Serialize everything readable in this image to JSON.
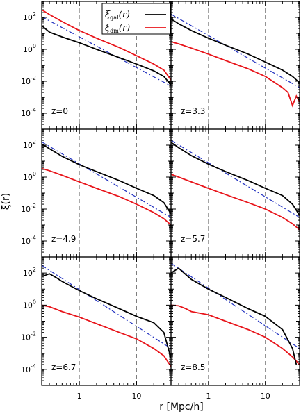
{
  "chart_data": {
    "type": "line",
    "xlabel": "r [Mpc/h]",
    "ylabel": "ξ(r)",
    "xscale": "log",
    "yscale": "log",
    "xlim": [
      0.22,
      40
    ],
    "ylim": [
      1e-05,
      1000
    ],
    "x_ticks": [
      "1",
      "10"
    ],
    "y_ticks": [
      "10^2",
      "10^0",
      "10^-2",
      "10^-4"
    ],
    "grid": false,
    "vertical_dashed_lines_at": [
      1,
      10
    ],
    "legend": {
      "placement": "top-left-panel",
      "entries": [
        {
          "label_base": "ξ",
          "label_sub": "gal",
          "label_tail": "(r)",
          "color": "#000000"
        },
        {
          "label_base": "ξ",
          "label_sub": "dm",
          "label_tail": "(r)",
          "color": "#e8141a"
        }
      ]
    },
    "reference_line": {
      "style": "dash-dot",
      "color": "#1f2fbf"
    },
    "panels": [
      {
        "label": "z=0",
        "series": {
          "gal": {
            "x": [
              0.22,
              0.3,
              0.5,
              1,
              2,
              5,
              10,
              20,
              30,
              40
            ],
            "y": [
              30,
              12,
              6,
              2.6,
              1.0,
              0.3,
              0.12,
              0.045,
              0.02,
              0.006
            ]
          },
          "dm": {
            "x": [
              0.22,
              0.3,
              0.5,
              1,
              2,
              5,
              10,
              20,
              30,
              40
            ],
            "y": [
              300,
              150,
              55,
              15,
              5,
              1.3,
              0.4,
              0.12,
              0.05,
              0.012
            ]
          },
          "ref": {
            "x": [
              0.22,
              40
            ],
            "y": [
              110,
              0.005
            ]
          }
        }
      },
      {
        "label": "z=3.3",
        "series": {
          "gal": {
            "x": [
              0.22,
              0.3,
              0.5,
              1,
              2,
              5,
              10,
              20,
              30,
              40
            ],
            "y": [
              80,
              40,
              15,
              5,
              1.8,
              0.5,
              0.16,
              0.05,
              0.02,
              0.008
            ]
          },
          "dm": {
            "x": [
              0.22,
              0.3,
              0.5,
              1,
              2,
              5,
              10,
              20,
              25,
              30,
              35,
              40
            ],
            "y": [
              3,
              2.2,
              1.2,
              0.5,
              0.2,
              0.06,
              0.02,
              0.004,
              0.002,
              0.0003,
              0.0012,
              0.0005
            ]
          },
          "ref": {
            "x": [
              0.22,
              40
            ],
            "y": [
              160,
              0.004
            ]
          }
        }
      },
      {
        "label": "z=4.9",
        "series": {
          "gal": {
            "x": [
              0.22,
              0.3,
              0.5,
              1,
              2,
              5,
              10,
              20,
              30,
              40
            ],
            "y": [
              120,
              60,
              20,
              6,
              2.2,
              0.6,
              0.2,
              0.07,
              0.025,
              0.005
            ]
          },
          "dm": {
            "x": [
              0.22,
              0.3,
              0.5,
              1,
              2,
              5,
              10,
              20,
              30,
              40
            ],
            "y": [
              3.5,
              2.5,
              1.3,
              0.5,
              0.2,
              0.06,
              0.02,
              0.006,
              0.0025,
              0.001
            ]
          },
          "ref": {
            "x": [
              0.22,
              40
            ],
            "y": [
              160,
              0.003
            ]
          }
        }
      },
      {
        "label": "z=5.7",
        "series": {
          "gal": {
            "x": [
              0.22,
              0.3,
              0.5,
              1,
              2,
              5,
              10,
              20,
              30,
              40
            ],
            "y": [
              150,
              70,
              22,
              6.5,
              2.2,
              0.6,
              0.2,
              0.07,
              0.02,
              0.004
            ]
          },
          "dm": {
            "x": [
              0.22,
              0.3,
              0.5,
              1,
              2,
              5,
              10,
              20,
              30,
              40
            ],
            "y": [
              1.5,
              1.0,
              0.5,
              0.2,
              0.08,
              0.025,
              0.01,
              0.003,
              0.0012,
              0.0005
            ]
          },
          "ref": {
            "x": [
              0.22,
              40
            ],
            "y": [
              200,
              0.003
            ]
          }
        }
      },
      {
        "label": "z=6.7",
        "series": {
          "gal": {
            "x": [
              0.22,
              0.3,
              0.4,
              0.5,
              1,
              2,
              5,
              10,
              20,
              30,
              40
            ],
            "y": [
              60,
              90,
              50,
              30,
              8,
              2.5,
              0.6,
              0.2,
              0.08,
              0.02,
              0.0005
            ]
          },
          "dm": {
            "x": [
              0.22,
              0.3,
              0.5,
              1,
              2,
              5,
              10,
              20,
              30,
              40
            ],
            "y": [
              1.0,
              0.8,
              0.4,
              0.18,
              0.07,
              0.02,
              0.008,
              0.002,
              0.0007,
              0.00015
            ]
          },
          "ref": {
            "x": [
              0.22,
              40
            ],
            "y": [
              300,
              0.002
            ]
          }
        }
      },
      {
        "label": "z=8.5",
        "series": {
          "gal": {
            "x": [
              0.22,
              0.3,
              0.4,
              0.5,
              1,
              2,
              5,
              10,
              20,
              30,
              35
            ],
            "y": [
              100,
              200,
              80,
              40,
              10,
              3,
              0.6,
              0.2,
              0.03,
              0.002,
              0.0002
            ]
          },
          "dm": {
            "x": [
              0.22,
              0.3,
              0.4,
              0.5,
              1,
              2,
              5,
              10,
              20,
              30,
              40
            ],
            "y": [
              1.0,
              0.9,
              0.6,
              0.4,
              0.25,
              0.1,
              0.03,
              0.01,
              0.002,
              0.0006,
              0.0002
            ]
          },
          "ref": {
            "x": [
              0.22,
              40
            ],
            "y": [
              400,
              0.002
            ]
          }
        }
      }
    ]
  }
}
